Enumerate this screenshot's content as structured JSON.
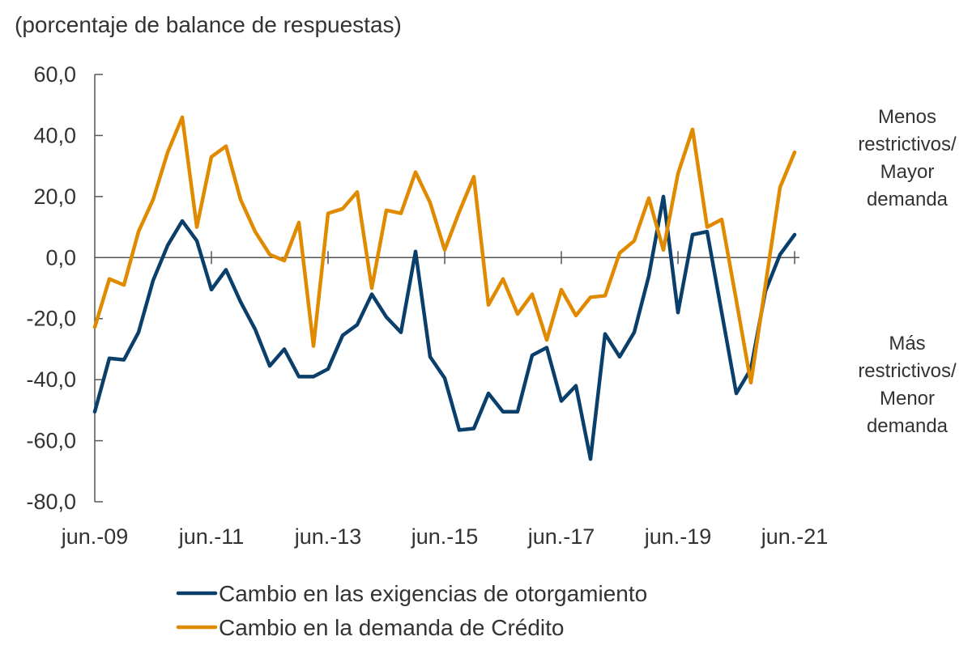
{
  "chart_data": {
    "type": "line",
    "title": "",
    "ylabel": "(porcentaje de balance de respuestas)",
    "xlabel": "",
    "ylim": [
      -80,
      60
    ],
    "yticks": [
      "60,0",
      "40,0",
      "20,0",
      "0,0",
      "-20,0",
      "-40,0",
      "-60,0",
      "-80,0"
    ],
    "ytick_values": [
      60,
      40,
      20,
      0,
      -20,
      -40,
      -60,
      -80
    ],
    "xtick_labels": [
      "jun.-09",
      "jun.-11",
      "jun.-13",
      "jun.-15",
      "jun.-17",
      "jun.-19",
      "jun.-21"
    ],
    "x_start": "jun.-09",
    "x_end": "jun.-21",
    "frequency": "quarterly",
    "grid": false,
    "legend_placement": "bottom",
    "annotations": [
      {
        "lines": [
          "Menos",
          "restrictivos/",
          "Mayor",
          "demanda"
        ]
      },
      {
        "lines": [
          "Más",
          "restrictivos/",
          "Menor",
          "demanda"
        ]
      }
    ],
    "series": [
      {
        "name": "Cambio en las exigencias de otorgamiento",
        "color": "#0b3f6b",
        "values": [
          -50.5,
          -33,
          -33.5,
          -24.5,
          -7.5,
          4,
          12,
          5.5,
          -10.5,
          -4,
          -14.5,
          -23.5,
          -35.5,
          -30,
          -39,
          -39,
          -36.5,
          -25.5,
          -22,
          -12,
          -19.5,
          -24.5,
          2,
          -32.5,
          -39.5,
          -56.5,
          -56,
          -44.5,
          -50.5,
          -50.5,
          -32,
          -29.5,
          -47,
          -42,
          -66,
          -25,
          -32.5,
          -24.5,
          -6,
          20,
          -18,
          7.5,
          8.5,
          -18,
          -44.5,
          -36.5,
          -11,
          1,
          7.5
        ]
      },
      {
        "name": "Cambio en la demanda de Crédito",
        "color": "#e08a00",
        "values": [
          -22.8,
          -7,
          -9,
          8.5,
          19,
          34.5,
          46,
          10,
          33,
          36.5,
          19,
          8.5,
          1,
          -1,
          11.5,
          -29,
          14.5,
          16,
          21.5,
          -10,
          15.5,
          14.5,
          28,
          18,
          2.5,
          15,
          26.5,
          -15.5,
          -7,
          -18.5,
          -12,
          -27,
          -10.5,
          -19,
          -13,
          -12.5,
          1.5,
          5.5,
          19.5,
          2.5,
          27.5,
          42,
          10,
          12.5,
          -14,
          -41,
          -9,
          23,
          34.5
        ]
      }
    ]
  }
}
